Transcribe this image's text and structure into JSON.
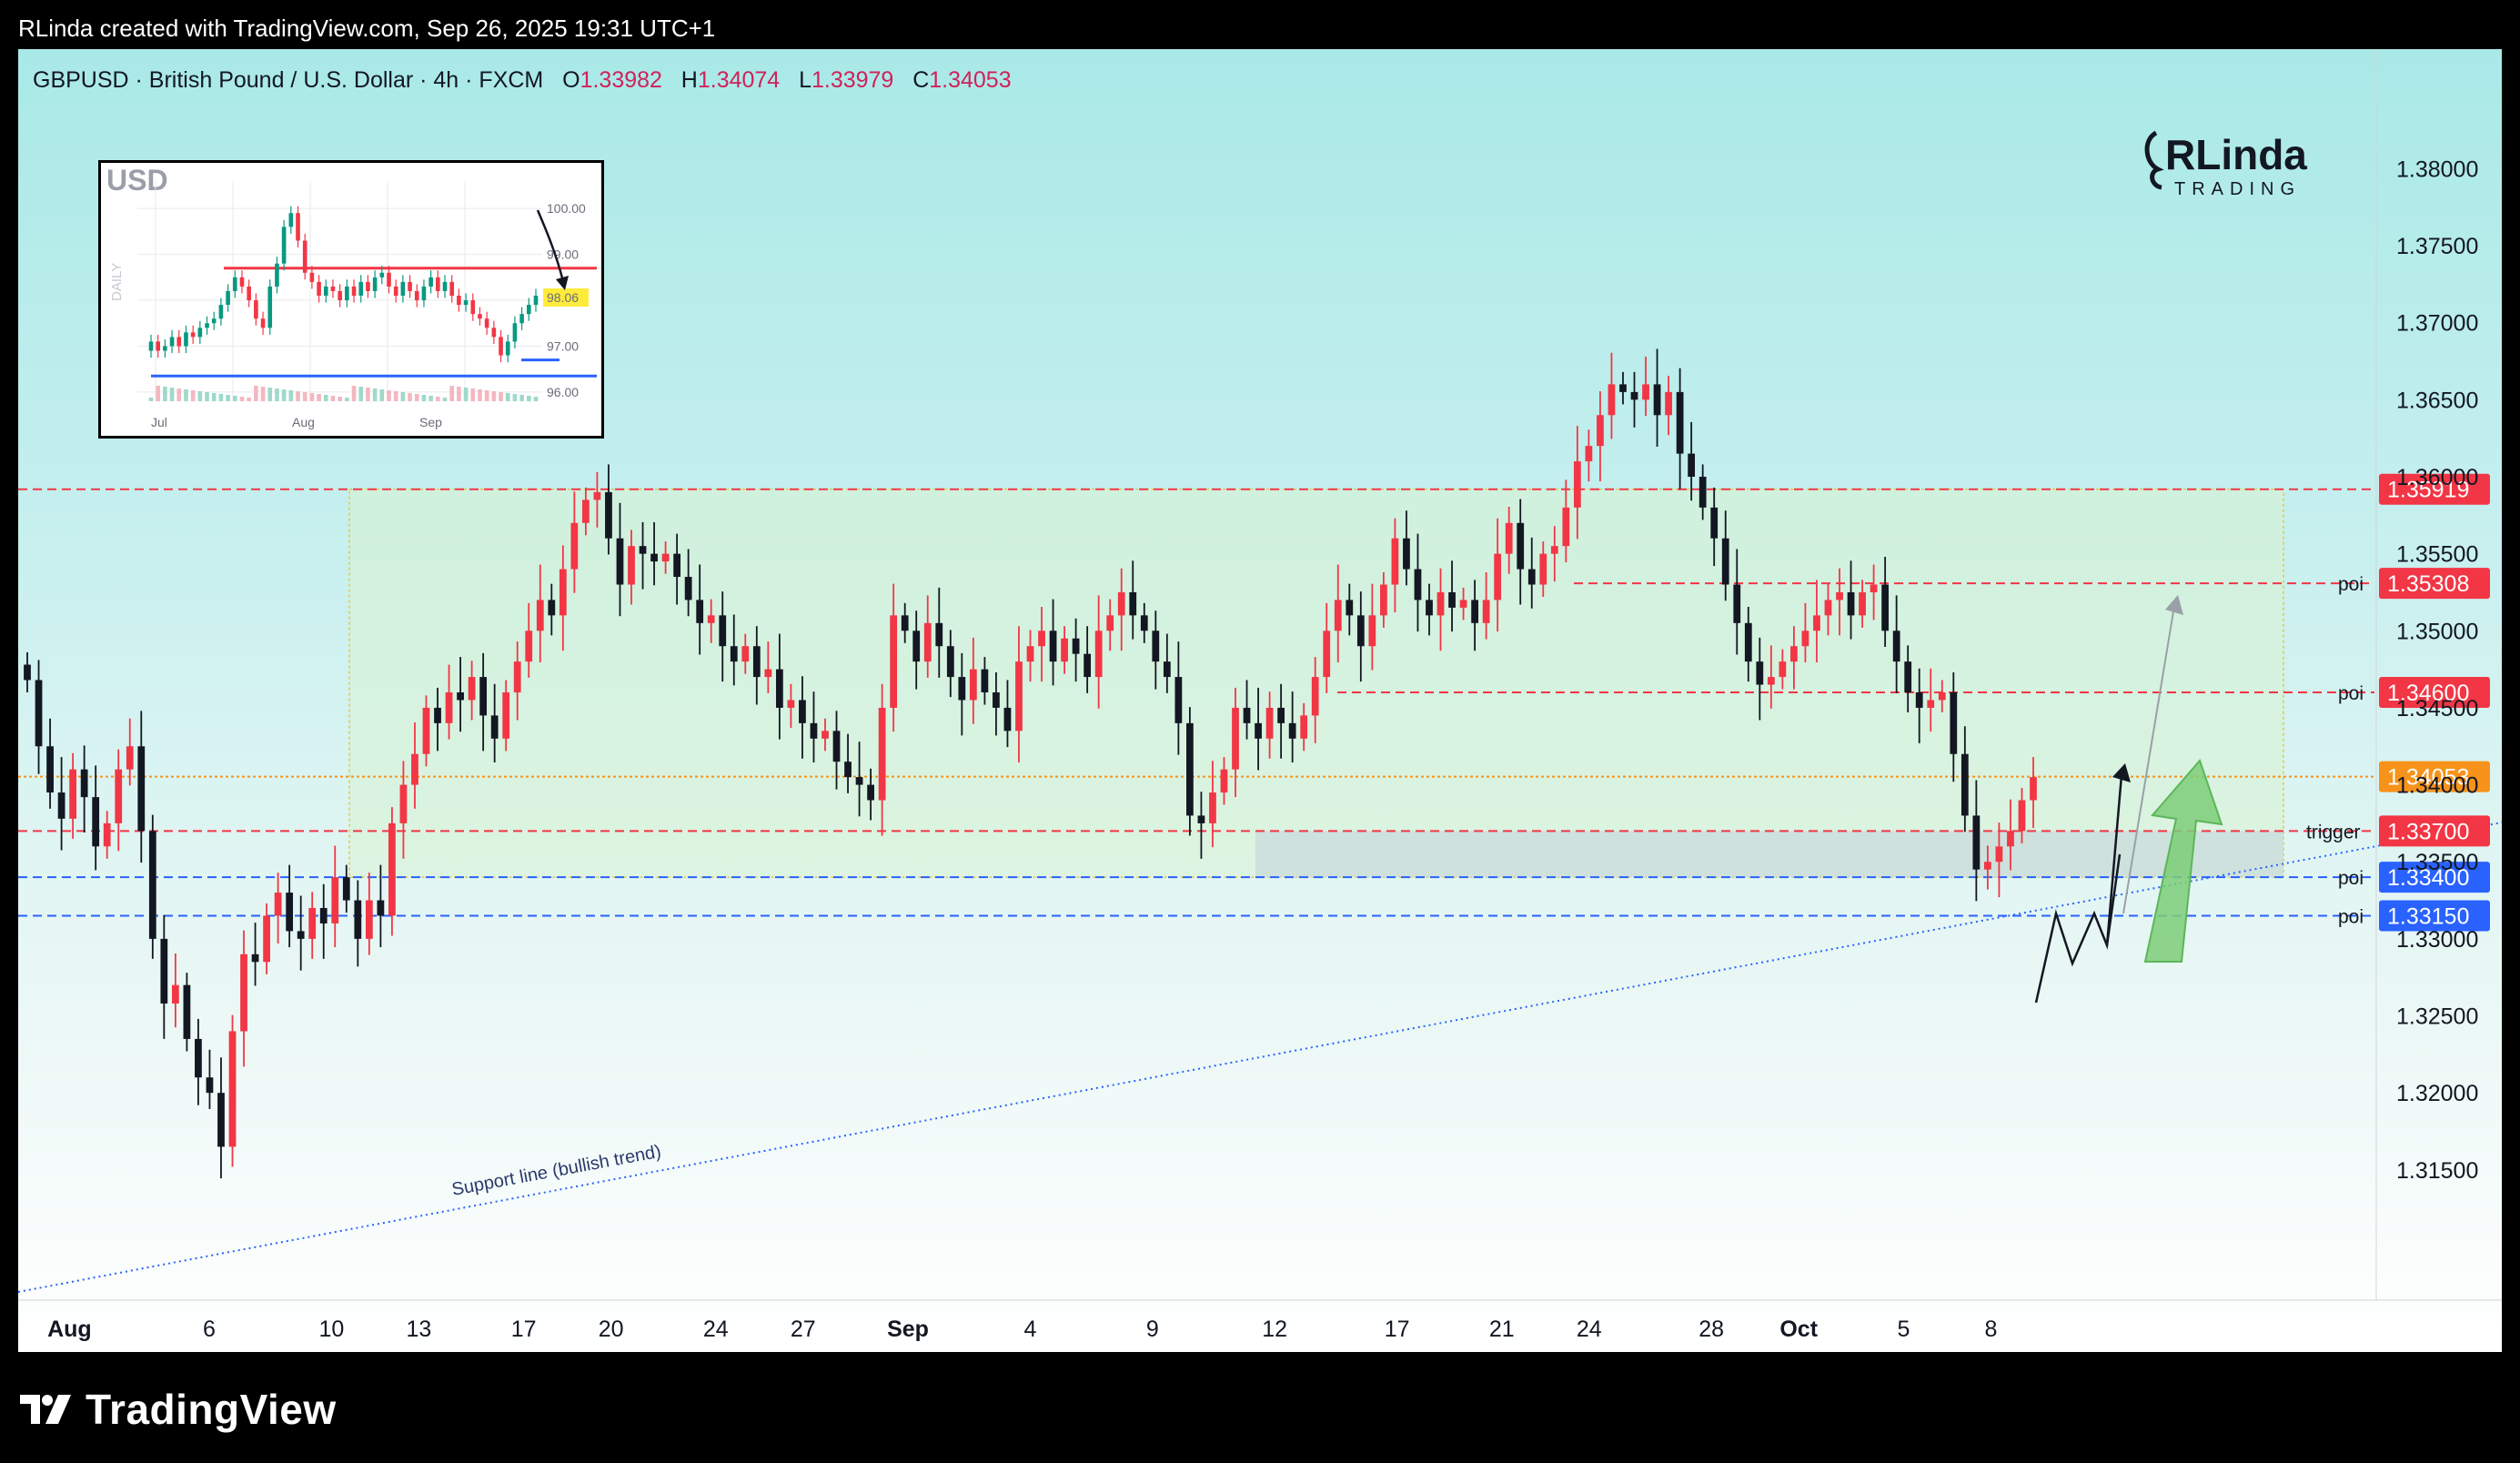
{
  "header": {
    "text": "RLinda created with TradingView.com, Sep 26, 2025 19:31 UTC+1"
  },
  "symbol": {
    "prefix": "GBPUSD · British Pound / U.S. Dollar · 4h · FXCM",
    "o_label": "O",
    "o_value": "1.33982",
    "h_label": "H",
    "h_value": "1.34074",
    "l_label": "L",
    "l_value": "1.33979",
    "c_label": "C",
    "c_value": "1.34053"
  },
  "brand": {
    "logo_text": "RLinda",
    "sub_text": "TRADING"
  },
  "footer": {
    "brand_text": "TradingView"
  },
  "colors": {
    "up": "#f23645",
    "down": "#131722",
    "red_level": "#f23645",
    "blue_level": "#2962ff",
    "orange_level": "#f7931a",
    "zone_green": "#d8f3d2",
    "zone_gray": "#c8d8dc"
  },
  "chart_data": {
    "type": "candlestick",
    "symbol": "GBPUSD",
    "timeframe": "4h",
    "y_ticks": [
      "1.38000",
      "1.37500",
      "1.37000",
      "1.36500",
      "1.36000",
      "1.35500",
      "1.35000",
      "1.34500",
      "1.34000",
      "1.33500",
      "1.33000",
      "1.32500",
      "1.32000",
      "1.31500"
    ],
    "ylim": [
      1.3105,
      1.3828
    ],
    "x_ticks": [
      {
        "label": "Aug",
        "pos": 2,
        "bold": true
      },
      {
        "label": "6",
        "pos": 10
      },
      {
        "label": "10",
        "pos": 17
      },
      {
        "label": "13",
        "pos": 22
      },
      {
        "label": "17",
        "pos": 28
      },
      {
        "label": "20",
        "pos": 33
      },
      {
        "label": "24",
        "pos": 39
      },
      {
        "label": "27",
        "pos": 44
      },
      {
        "label": "Sep",
        "pos": 50,
        "bold": true
      },
      {
        "label": "4",
        "pos": 57
      },
      {
        "label": "9",
        "pos": 64
      },
      {
        "label": "12",
        "pos": 71
      },
      {
        "label": "17",
        "pos": 78
      },
      {
        "label": "21",
        "pos": 84
      },
      {
        "label": "24",
        "pos": 89
      },
      {
        "label": "28",
        "pos": 96
      },
      {
        "label": "Oct",
        "pos": 101,
        "bold": true
      },
      {
        "label": "5",
        "pos": 107
      },
      {
        "label": "8",
        "pos": 112
      }
    ],
    "levels": [
      {
        "price": 1.35919,
        "label": "1.35919",
        "kind": "red",
        "note": ""
      },
      {
        "price": 1.35308,
        "label": "1.35308",
        "kind": "red",
        "note": "poi"
      },
      {
        "price": 1.346,
        "label": "1.34600",
        "kind": "red",
        "note": "poi"
      },
      {
        "price": 1.34053,
        "label": "1.34053",
        "kind": "orange",
        "note": ""
      },
      {
        "price": 1.337,
        "label": "1.33700",
        "kind": "red",
        "note": "trigger"
      },
      {
        "price": 1.334,
        "label": "1.33400",
        "kind": "blue",
        "note": "poi"
      },
      {
        "price": 1.3315,
        "label": "1.33150",
        "kind": "blue",
        "note": "poi"
      }
    ],
    "trendline_label": "Support line (bullish trend)",
    "series": [
      {
        "name": "GBPUSD",
        "closes": [
          1.3468,
          1.3425,
          1.3395,
          1.3378,
          1.341,
          1.3392,
          1.336,
          1.3375,
          1.341,
          1.3425,
          1.337,
          1.33,
          1.3258,
          1.327,
          1.3235,
          1.321,
          1.32,
          1.3165,
          1.324,
          1.329,
          1.3285,
          1.3315,
          1.333,
          1.3305,
          1.33,
          1.332,
          1.331,
          1.334,
          1.3325,
          1.33,
          1.3325,
          1.3315,
          1.3375,
          1.34,
          1.342,
          1.345,
          1.344,
          1.346,
          1.3455,
          1.347,
          1.3445,
          1.343,
          1.346,
          1.348,
          1.35,
          1.352,
          1.351,
          1.354,
          1.357,
          1.3585,
          1.359,
          1.356,
          1.353,
          1.3555,
          1.355,
          1.3545,
          1.355,
          1.3535,
          1.352,
          1.3505,
          1.351,
          1.349,
          1.348,
          1.349,
          1.347,
          1.3475,
          1.345,
          1.3455,
          1.344,
          1.343,
          1.3435,
          1.3415,
          1.3405,
          1.34,
          1.339,
          1.345,
          1.351,
          1.35,
          1.348,
          1.3505,
          1.349,
          1.347,
          1.3455,
          1.3475,
          1.346,
          1.345,
          1.3435,
          1.348,
          1.349,
          1.35,
          1.348,
          1.3495,
          1.3485,
          1.347,
          1.35,
          1.351,
          1.3525,
          1.351,
          1.35,
          1.348,
          1.347,
          1.344,
          1.338,
          1.3375,
          1.3395,
          1.341,
          1.345,
          1.344,
          1.343,
          1.345,
          1.344,
          1.343,
          1.3445,
          1.347,
          1.35,
          1.352,
          1.351,
          1.349,
          1.351,
          1.353,
          1.356,
          1.354,
          1.352,
          1.351,
          1.3525,
          1.3515,
          1.352,
          1.3505,
          1.352,
          1.355,
          1.357,
          1.354,
          1.353,
          1.355,
          1.3555,
          1.358,
          1.361,
          1.362,
          1.364,
          1.366,
          1.3655,
          1.365,
          1.366,
          1.364,
          1.3655,
          1.3615,
          1.36,
          1.358,
          1.356,
          1.353,
          1.3505,
          1.348,
          1.3465,
          1.347,
          1.348,
          1.349,
          1.35,
          1.351,
          1.352,
          1.3525,
          1.351,
          1.3525,
          1.353,
          1.35,
          1.348,
          1.346,
          1.345,
          1.3455,
          1.346,
          1.342,
          1.338,
          1.3345,
          1.335,
          1.336,
          1.337,
          1.339,
          1.3405
        ]
      }
    ]
  },
  "inset": {
    "title": "USD",
    "side_label": "DAILY",
    "y_ticks": [
      "100.00",
      "99.00",
      "98.06",
      "97.00",
      "96.00"
    ],
    "x_ticks": [
      "Jul",
      "Aug",
      "Sep"
    ],
    "last_value": "98.06",
    "chart_data": {
      "type": "candlestick",
      "closes": [
        97.1,
        96.9,
        97.0,
        97.2,
        97.0,
        97.3,
        97.2,
        97.4,
        97.5,
        97.6,
        97.9,
        98.2,
        98.5,
        98.3,
        98.0,
        97.6,
        97.4,
        98.3,
        98.8,
        99.6,
        99.9,
        99.3,
        98.6,
        98.4,
        98.1,
        98.3,
        98.2,
        98.0,
        98.3,
        98.1,
        98.4,
        98.2,
        98.5,
        98.6,
        98.3,
        98.1,
        98.4,
        98.2,
        98.0,
        98.3,
        98.5,
        98.2,
        98.4,
        98.1,
        97.9,
        98.0,
        97.7,
        97.6,
        97.4,
        97.2,
        96.8,
        97.1,
        97.5,
        97.7,
        97.9,
        98.1
      ],
      "ylim": [
        95.8,
        100.4
      ],
      "levels": [
        {
          "price": 98.7,
          "kind": "red"
        },
        {
          "price": 96.35,
          "kind": "blue"
        }
      ]
    }
  }
}
